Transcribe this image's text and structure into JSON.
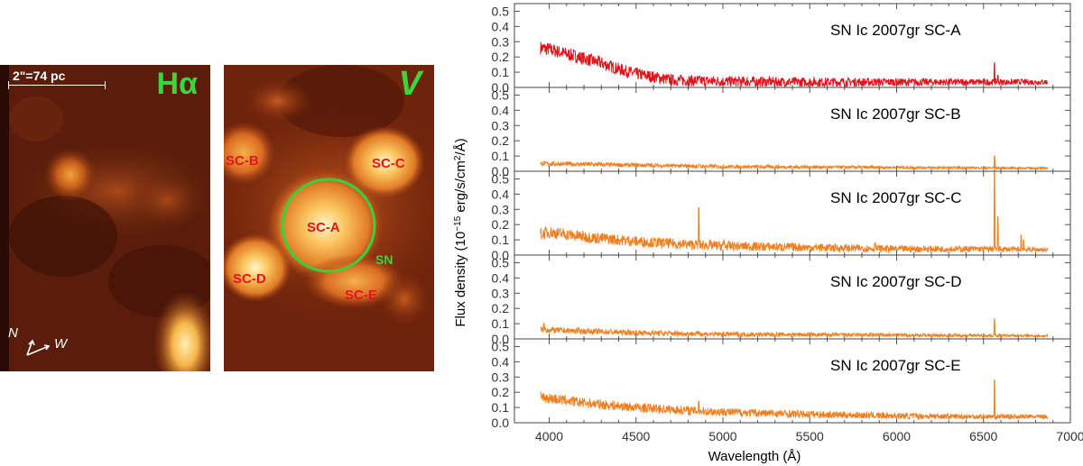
{
  "images": {
    "ha": {
      "band": "Hα",
      "scale": "2\"=74 pc",
      "compass_n": "N",
      "compass_w": "W"
    },
    "v": {
      "band": "V",
      "sn_label": "SN",
      "clusters": [
        "SC-A",
        "SC-B",
        "SC-C",
        "SC-D",
        "SC-E"
      ]
    }
  },
  "colors": {
    "sc_a_line": "#e3121b",
    "other_lines": "#f07f1f",
    "band_label": "#39d63c",
    "cluster_label": "#e3141c"
  },
  "chart_data": {
    "type": "line",
    "xlabel": "Wavelength (Å)",
    "ylabel_parts": [
      "Flux density (10",
      "−15",
      " erg/s/cm",
      "2",
      "/Å)"
    ],
    "x_ticks": [
      4000,
      4500,
      5000,
      5500,
      6000,
      6500,
      7000
    ],
    "xlim": [
      3800,
      7000
    ],
    "ylim": [
      0,
      0.55
    ],
    "y_ticks": [
      "0.0",
      "0.1",
      "0.2",
      "0.3",
      "0.4",
      "0.5"
    ],
    "x_range": [
      3950,
      6870
    ],
    "series": [
      {
        "name": "SN Ic 2007gr SC-A",
        "color": "#e3121b",
        "x": [
          3950,
          4000,
          4100,
          4200,
          4300,
          4400,
          4500,
          4600,
          4700,
          4800,
          5000,
          5500,
          6000,
          6500,
          6870
        ],
        "y": [
          0.26,
          0.25,
          0.22,
          0.19,
          0.16,
          0.12,
          0.09,
          0.07,
          0.05,
          0.045,
          0.04,
          0.035,
          0.035,
          0.035,
          0.035
        ],
        "noise": 0.045,
        "lines": [
          {
            "x": 6563,
            "y": 0.16
          },
          {
            "x": 6583,
            "y": 0.08
          },
          {
            "x": 6717,
            "y": 0.05
          }
        ]
      },
      {
        "name": "SN Ic 2007gr SC-B",
        "color": "#f07f1f",
        "x": [
          3950,
          4500,
          5000,
          6000,
          6870
        ],
        "y": [
          0.05,
          0.04,
          0.03,
          0.025,
          0.02
        ],
        "noise": 0.015,
        "lines": [
          {
            "x": 6563,
            "y": 0.1
          },
          {
            "x": 4861,
            "y": 0.045
          }
        ]
      },
      {
        "name": "SN Ic 2007gr SC-C",
        "color": "#f07f1f",
        "x": [
          3950,
          4000,
          4200,
          4500,
          4800,
          5000,
          5500,
          6000,
          6500,
          6870
        ],
        "y": [
          0.14,
          0.15,
          0.12,
          0.09,
          0.07,
          0.06,
          0.05,
          0.04,
          0.04,
          0.035
        ],
        "noise": 0.04,
        "lines": [
          {
            "x": 4861,
            "y": 0.31
          },
          {
            "x": 5007,
            "y": 0.1
          },
          {
            "x": 6563,
            "y": 0.56
          },
          {
            "x": 6583,
            "y": 0.25
          },
          {
            "x": 6717,
            "y": 0.13
          },
          {
            "x": 6731,
            "y": 0.1
          },
          {
            "x": 5876,
            "y": 0.08
          }
        ]
      },
      {
        "name": "SN Ic 2007gr SC-D",
        "color": "#f07f1f",
        "x": [
          3950,
          4500,
          5000,
          6000,
          6870
        ],
        "y": [
          0.06,
          0.04,
          0.03,
          0.025,
          0.02
        ],
        "noise": 0.02,
        "lines": [
          {
            "x": 3970,
            "y": 0.1
          },
          {
            "x": 6563,
            "y": 0.13
          },
          {
            "x": 4861,
            "y": 0.05
          }
        ]
      },
      {
        "name": "SN Ic 2007gr SC-E",
        "color": "#f07f1f",
        "x": [
          3950,
          4000,
          4200,
          4500,
          4800,
          5000,
          5500,
          6000,
          6500,
          6870
        ],
        "y": [
          0.17,
          0.16,
          0.13,
          0.1,
          0.08,
          0.07,
          0.055,
          0.045,
          0.04,
          0.04
        ],
        "noise": 0.035,
        "lines": [
          {
            "x": 4861,
            "y": 0.14
          },
          {
            "x": 6563,
            "y": 0.28
          },
          {
            "x": 5007,
            "y": 0.09
          }
        ]
      }
    ]
  }
}
